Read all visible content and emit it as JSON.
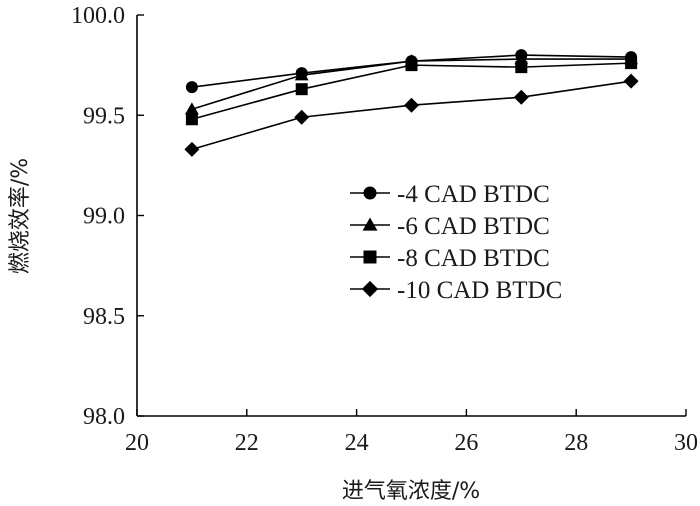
{
  "chart_data": {
    "type": "line",
    "xlabel": "进气氧浓度/%",
    "ylabel": "燃烧效率/%",
    "xlim": [
      20,
      30
    ],
    "ylim": [
      98.0,
      100.0
    ],
    "x_ticks": [
      20,
      22,
      24,
      26,
      28,
      30
    ],
    "y_ticks": [
      98.0,
      98.5,
      99.0,
      99.5,
      100.0
    ],
    "x_tick_labels": [
      "20",
      "22",
      "24",
      "26",
      "28",
      "30"
    ],
    "y_tick_labels": [
      "98.0",
      "98.5",
      "99.0",
      "99.5",
      "100.0"
    ],
    "grid": false,
    "legend_position": "center-right",
    "x": [
      21,
      23,
      25,
      27,
      29
    ],
    "series": [
      {
        "name": "-4 CAD BTDC",
        "marker": "circle",
        "color": "#000000",
        "values": [
          99.64,
          99.71,
          99.77,
          99.8,
          99.79
        ]
      },
      {
        "name": "-6 CAD BTDC",
        "marker": "triangle",
        "color": "#000000",
        "values": [
          99.53,
          99.7,
          99.77,
          99.78,
          99.78
        ]
      },
      {
        "name": "-8 CAD BTDC",
        "marker": "square",
        "color": "#000000",
        "values": [
          99.48,
          99.63,
          99.75,
          99.74,
          99.76
        ]
      },
      {
        "name": "-10 CAD BTDC",
        "marker": "diamond",
        "color": "#000000",
        "values": [
          99.33,
          99.49,
          99.55,
          99.59,
          99.67
        ]
      }
    ]
  }
}
